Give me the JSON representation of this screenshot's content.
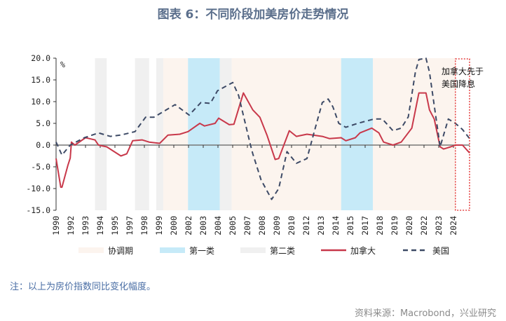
{
  "title": "图表 6：不同阶段加美房价走势情况",
  "note": "注：以上为房价指数同比变化幅度。",
  "source": "资料来源：Macrobond，兴业研究",
  "chart_data": {
    "type": "line",
    "title": "图表 6：不同阶段加美房价走势情况",
    "ylabel": "%",
    "ylim": [
      -15,
      20
    ],
    "yticks": [
      "20.0",
      "15.0",
      "10.0",
      "5.0",
      "0.0",
      "-5.0",
      "-10.0",
      "-15.0"
    ],
    "xlim": [
      1990,
      2025.1
    ],
    "xtick_labels": [
      "1990",
      "1992",
      "1993",
      "1994",
      "1995",
      "1997",
      "1998",
      "1999",
      "2000",
      "2002",
      "2003",
      "2004",
      "2005",
      "2007",
      "2008",
      "2009",
      "2010",
      "2012",
      "2013",
      "2014",
      "2015",
      "2017",
      "2018",
      "2019",
      "2020",
      "2022",
      "2023",
      "2024"
    ],
    "colors": {
      "canada": "#c8384a",
      "us": "#3d4a66",
      "coordination": "#fcf4ee",
      "type1": "#c6eaf8",
      "type2": "#f0f0f0",
      "annotation_box": "#e02020"
    },
    "legend": {
      "position": "bottom",
      "items": [
        "协调期",
        "第一类",
        "第二类",
        "加拿大",
        "美国"
      ]
    },
    "shaded_periods": [
      {
        "type": "第二类",
        "start": 1993.3,
        "end": 1994.3
      },
      {
        "type": "第二类",
        "start": 1996.7,
        "end": 1997.9
      },
      {
        "type": "第二类",
        "start": 1998.5,
        "end": 1999.1
      },
      {
        "type": "协调期",
        "start": 1999.1,
        "end": 2001.2
      },
      {
        "type": "第一类",
        "start": 2001.2,
        "end": 2003.9
      },
      {
        "type": "第二类",
        "start": 2003.9,
        "end": 2004.9
      },
      {
        "type": "协调期",
        "start": 2004.9,
        "end": 2014.2
      },
      {
        "type": "第一类",
        "start": 2014.2,
        "end": 2016.9
      },
      {
        "type": "协调期",
        "start": 2016.9,
        "end": 2023.9
      }
    ],
    "annotation": {
      "text": "加拿大先于美国降息",
      "box_start": 2023.9,
      "box_end": 2025.1
    },
    "series": [
      {
        "name": "加拿大",
        "style": "solid",
        "x": [
          1990.0,
          1990.4,
          1990.5,
          1991.0,
          1991.2,
          1991.3,
          1991.6,
          1992.5,
          1993.3,
          1993.6,
          1994.3,
          1995.5,
          1996.0,
          1996.5,
          1997.3,
          1997.9,
          1998.8,
          1999.5,
          2000.5,
          2001.2,
          2002.2,
          2002.6,
          2003.5,
          2003.8,
          2004.7,
          2005.1,
          2005.9,
          2006.7,
          2007.3,
          2007.9,
          2008.6,
          2008.9,
          2009.8,
          2010.4,
          2011.3,
          2012.6,
          2013.2,
          2014.2,
          2014.6,
          2015.4,
          2015.8,
          2016.8,
          2017.4,
          2017.8,
          2018.6,
          2019.3,
          2020.2,
          2020.8,
          2021.4,
          2021.7,
          2022.1,
          2022.6,
          2022.9,
          2023.5,
          2023.9,
          2024.5,
          2025.1
        ],
        "y": [
          -3.1,
          -9.7,
          -9.7,
          -4.7,
          -3.0,
          0.7,
          0.0,
          1.7,
          1.2,
          0.0,
          -0.4,
          -2.5,
          -2.0,
          1.0,
          1.2,
          0.7,
          0.4,
          2.3,
          2.5,
          3.1,
          5.0,
          4.4,
          5.0,
          6.2,
          4.7,
          4.8,
          12.0,
          8.1,
          6.4,
          2.3,
          -3.3,
          -3.1,
          3.3,
          2.0,
          2.5,
          2.0,
          1.5,
          1.7,
          1.0,
          1.7,
          2.8,
          3.9,
          2.8,
          0.7,
          0.0,
          0.7,
          3.9,
          12.0,
          12.0,
          8.1,
          6.0,
          -0.4,
          -0.9,
          -0.4,
          0.0,
          0.0,
          -1.8
        ]
      },
      {
        "name": "美国",
        "style": "dashed",
        "x": [
          1990.0,
          1990.5,
          1991.2,
          1992.4,
          1993.6,
          1994.6,
          1995.5,
          1996.7,
          1997.6,
          1998.3,
          2000.1,
          2001.3,
          2002.3,
          2003.1,
          2003.7,
          2005.0,
          2005.5,
          2006.5,
          2006.7,
          2007.4,
          2008.3,
          2008.9,
          2009.6,
          2010.4,
          2011.3,
          2012.0,
          2012.6,
          2013.1,
          2013.5,
          2014.0,
          2014.6,
          2015.6,
          2017.0,
          2017.7,
          2018.6,
          2019.3,
          2019.9,
          2020.5,
          2020.8,
          2021.4,
          2021.7,
          2022.6,
          2023.3,
          2023.9,
          2024.5,
          2025.1
        ],
        "y": [
          0.7,
          -2.3,
          0.0,
          1.7,
          2.8,
          2.0,
          2.3,
          3.1,
          6.4,
          6.4,
          9.3,
          6.9,
          9.8,
          9.6,
          12.5,
          14.4,
          11.4,
          0.0,
          -2.0,
          -8.0,
          -12.5,
          -10.0,
          -1.5,
          -4.2,
          -3.1,
          3.9,
          9.8,
          10.6,
          8.8,
          5.0,
          4.1,
          5.0,
          6.0,
          6.0,
          3.3,
          3.9,
          6.5,
          16.8,
          19.7,
          20.0,
          16.8,
          -0.4,
          6.0,
          5.0,
          3.6,
          1.5
        ]
      }
    ]
  }
}
